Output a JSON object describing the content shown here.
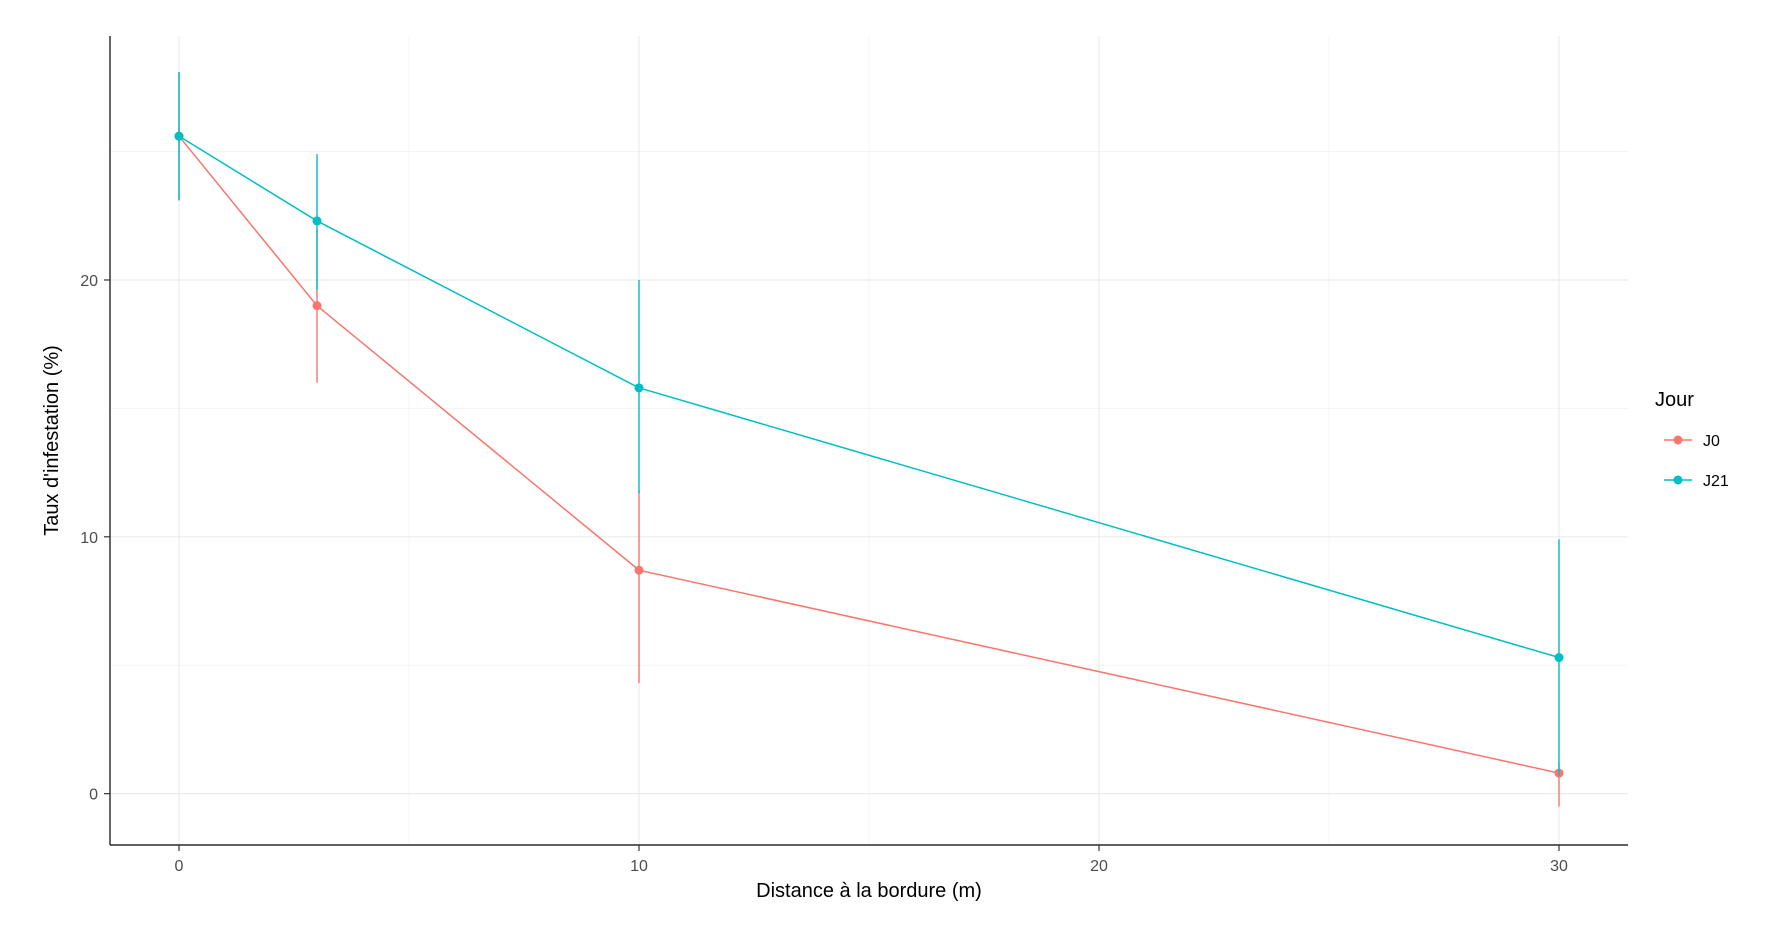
{
  "chart_data": {
    "type": "line",
    "title": "",
    "xlabel": "Distance à la bordure (m)",
    "ylabel": "Taux d'infestation (%)",
    "x": [
      0,
      3,
      10,
      30
    ],
    "xlim": [
      -1.5,
      31.5
    ],
    "ylim": [
      -2,
      29.5
    ],
    "xticks": [
      0,
      10,
      20,
      30
    ],
    "yticks": [
      0,
      10,
      20
    ],
    "xtick_labels": [
      "0",
      "10",
      "20",
      "30"
    ],
    "ytick_labels": [
      "0",
      "10",
      "20"
    ],
    "grid": true,
    "legend": {
      "title": "Jour",
      "placement": "right"
    },
    "series": [
      {
        "name": "J0",
        "color": "#F8766D",
        "values": [
          25.6,
          19.0,
          8.7,
          0.8
        ],
        "lower": [
          23.1,
          16.0,
          4.3,
          -0.5
        ],
        "upper": [
          28.1,
          22.0,
          11.8,
          1.2
        ]
      },
      {
        "name": "J21",
        "color": "#00BFC4",
        "values": [
          25.6,
          22.3,
          15.8,
          5.3
        ],
        "lower": [
          23.1,
          19.6,
          11.7,
          0.7
        ],
        "upper": [
          28.1,
          24.9,
          20.0,
          9.9
        ]
      }
    ]
  }
}
